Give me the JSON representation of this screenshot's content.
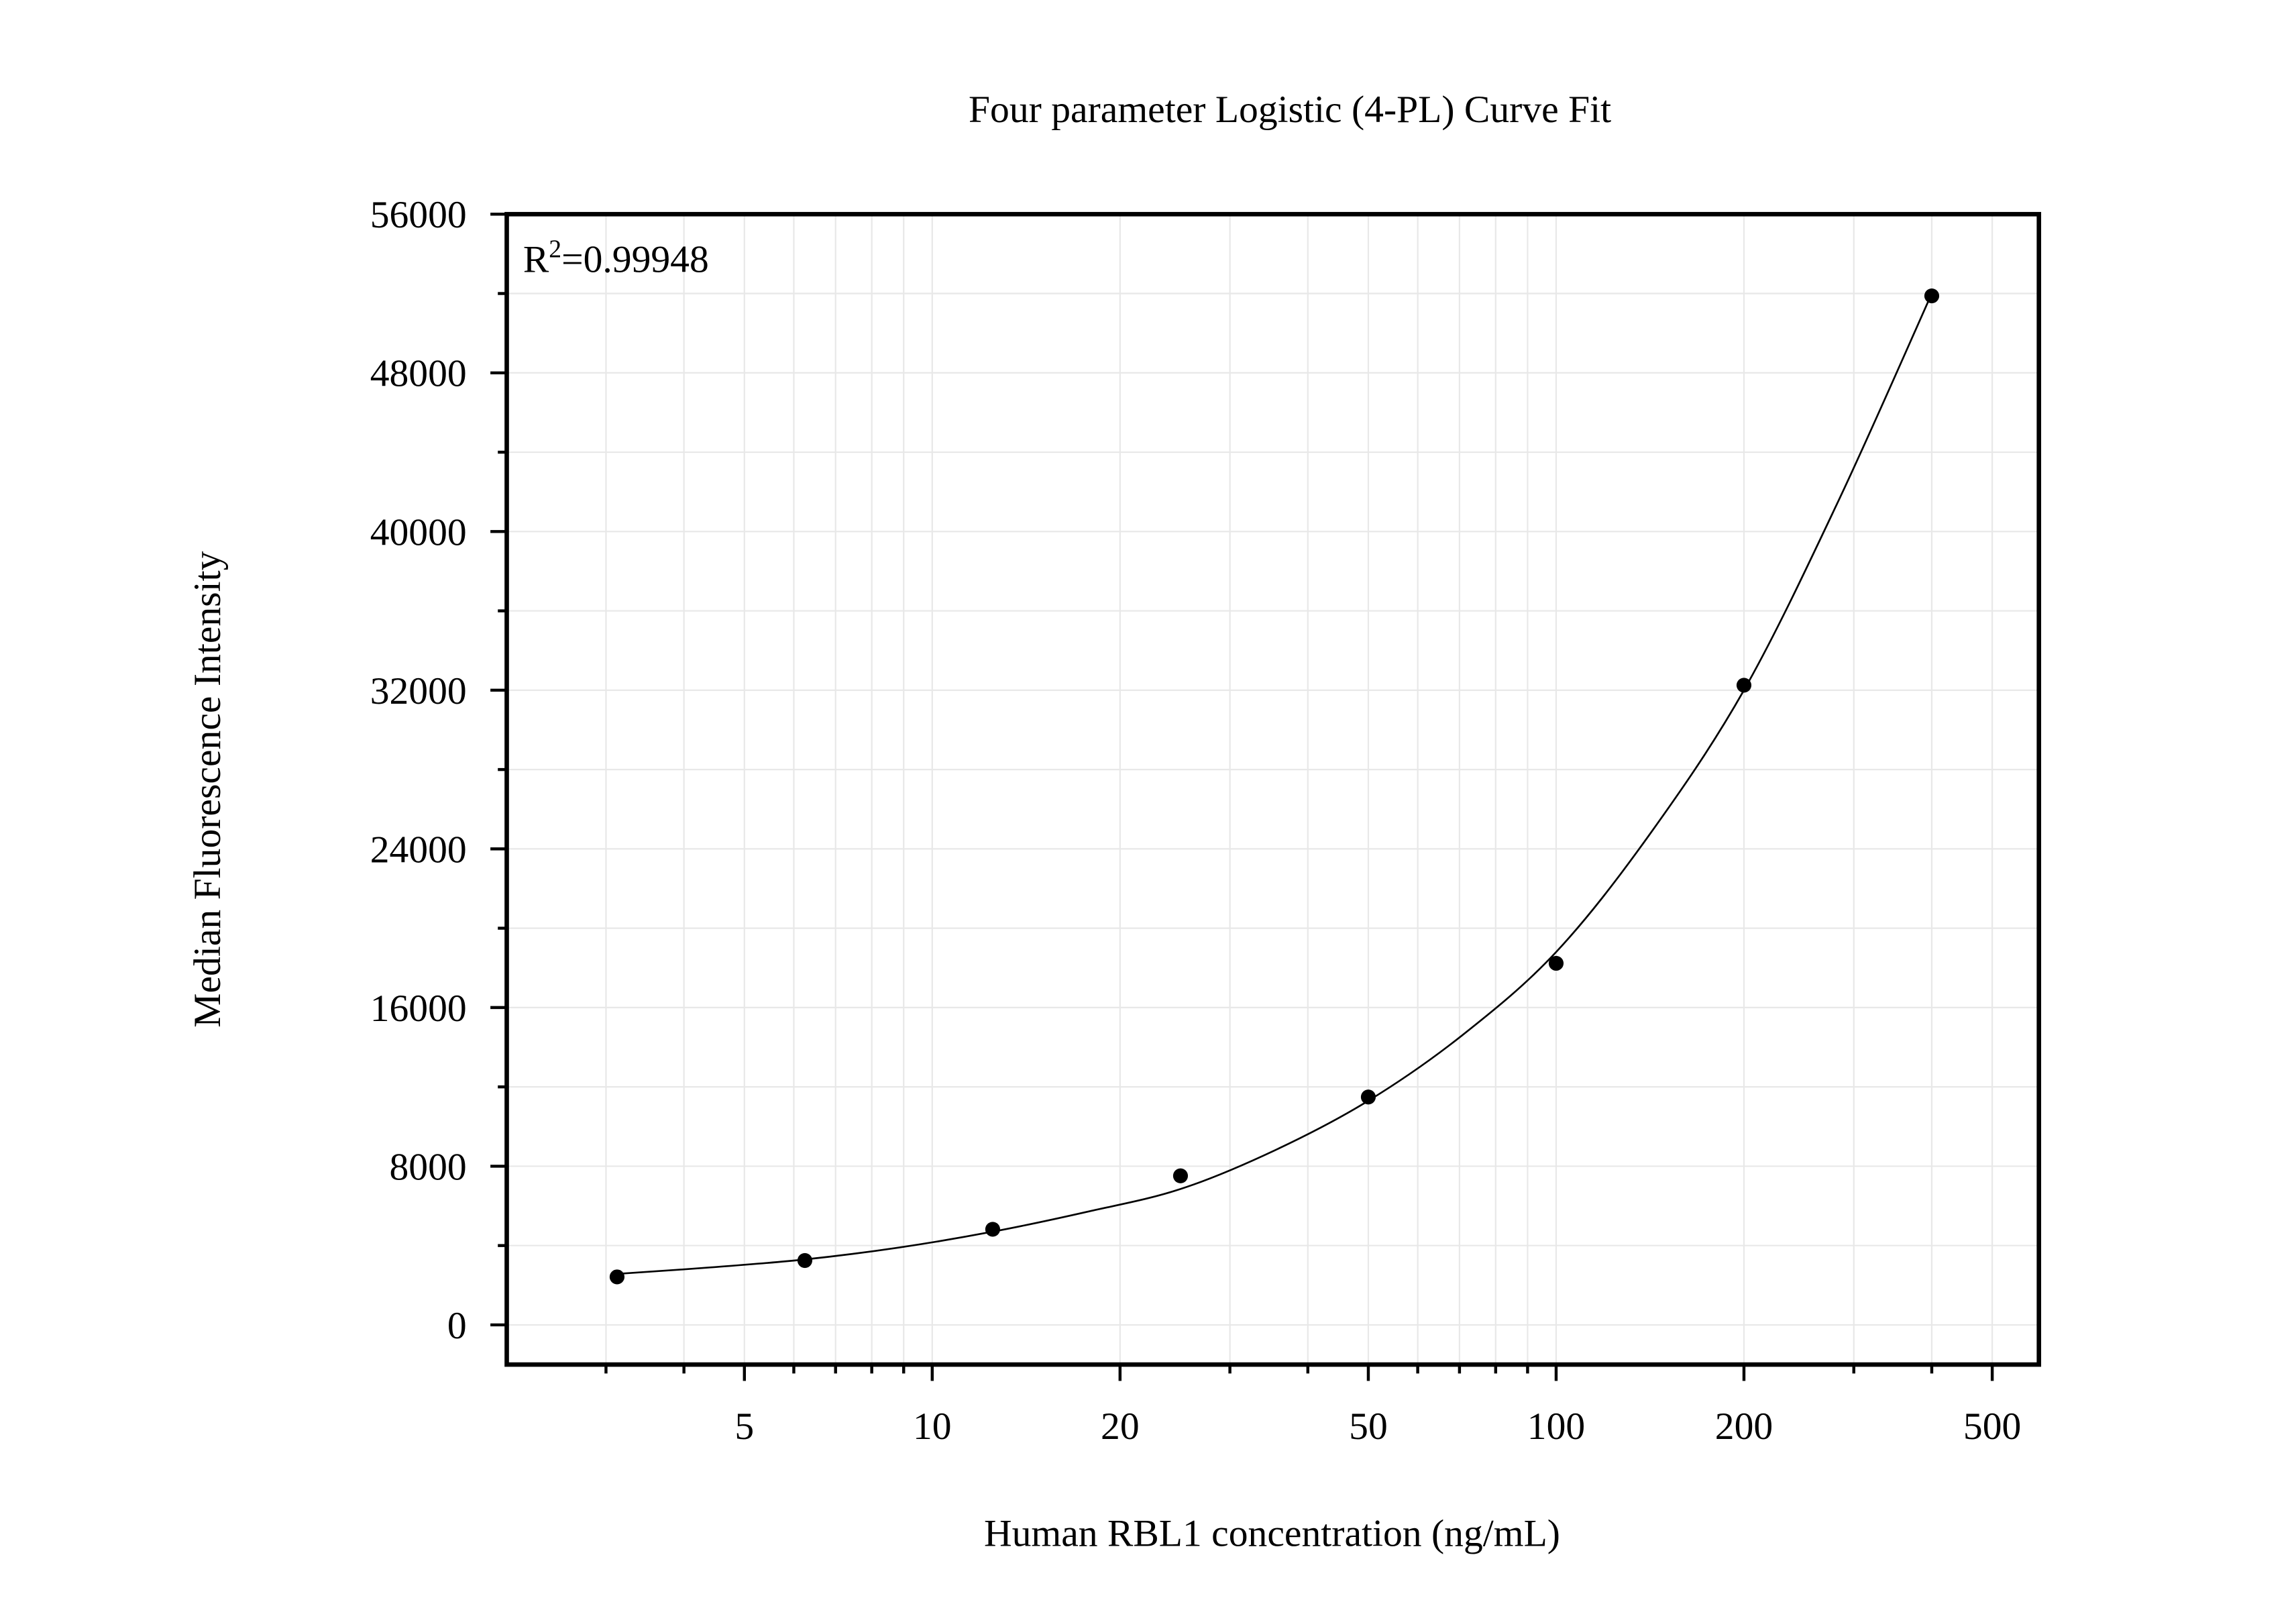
{
  "chart_data": {
    "type": "scatter",
    "title": "Four parameter Logistic (4-PL) Curve Fit",
    "xlabel": "Human RBL1 concentration (ng/mL)",
    "ylabel": "Median Fluorescence Intensity",
    "annotation": {
      "base": "R",
      "sup": "2",
      "text": "=0.99948"
    },
    "x": [
      3.125,
      6.25,
      12.5,
      25,
      50,
      100,
      200,
      400
    ],
    "values": [
      2420,
      3245,
      4820,
      7515,
      11490,
      18230,
      32250,
      51880
    ],
    "color": "#000000",
    "curve": {
      "x": [
        3.125,
        4.42,
        6.25,
        8.84,
        12.5,
        17.7,
        25,
        35.4,
        50,
        70.7,
        100,
        141,
        200,
        283,
        400
      ],
      "values": [
        2570,
        2900,
        3300,
        3900,
        4700,
        5700,
        6850,
        8800,
        11300,
        14600,
        18800,
        24700,
        32000,
        41500,
        52000
      ]
    },
    "xlog": true,
    "xlim": [
      2.08,
      594
    ],
    "xticks": [
      5,
      10,
      20,
      50,
      100,
      200,
      500
    ],
    "xminor_ticks": [
      3,
      4,
      6,
      7,
      8,
      9,
      30,
      40,
      60,
      70,
      80,
      90,
      300,
      400
    ],
    "ylim": [
      -2000,
      56000
    ],
    "yticks": [
      0,
      8000,
      16000,
      24000,
      32000,
      40000,
      48000,
      56000
    ],
    "yminor_ticks": [
      4000,
      12000,
      20000,
      28000,
      36000,
      44000,
      52000
    ],
    "grid": true
  }
}
